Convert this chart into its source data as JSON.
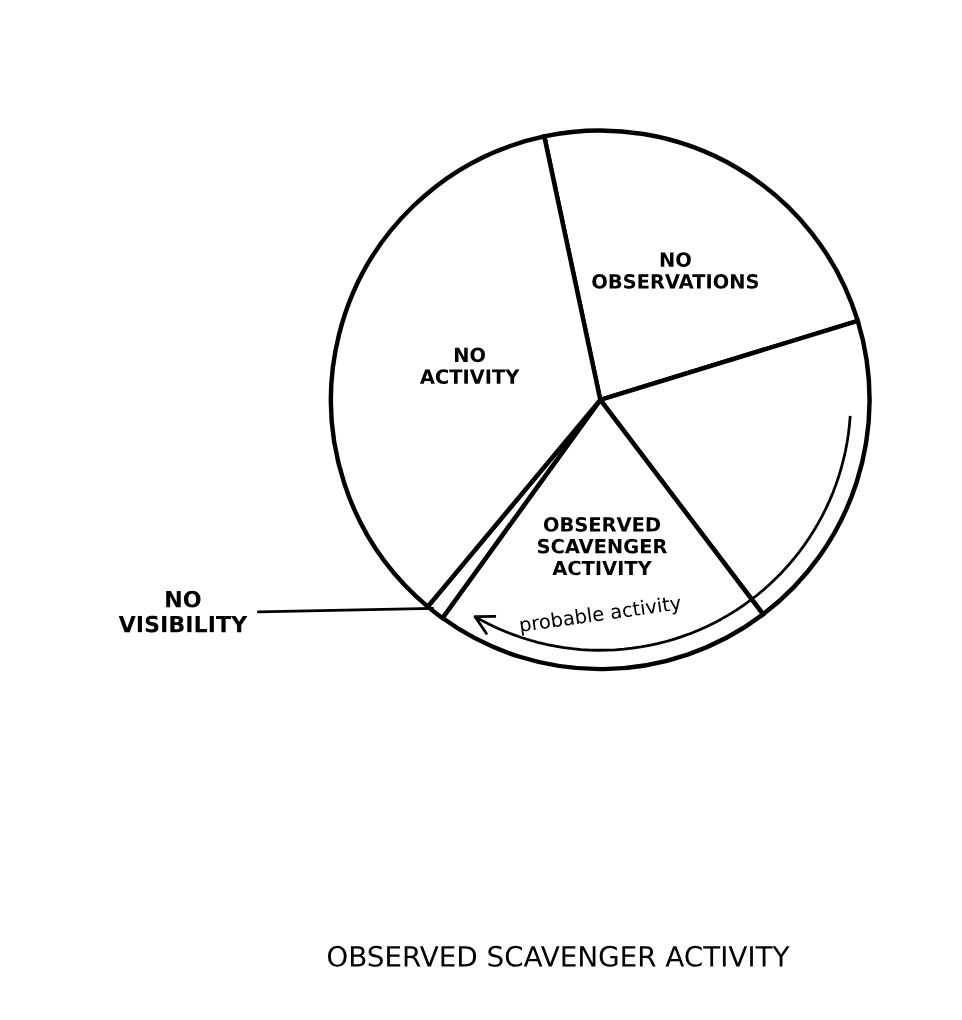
{
  "chart_data": {
    "type": "pie",
    "title": "OBSERVED SCAVENGER ACTIVITY",
    "categories": [
      "NO OBSERVATIONS",
      null,
      "OBSERVED SCAVENGER ACTIVITY",
      "NO VISIBILITY",
      "NO ACTIVITY"
    ],
    "values": [
      23.6,
      19.4,
      20.3,
      1.1,
      35.6
    ],
    "colors": [
      "#ffffff",
      "#ffffff",
      "#ffffff",
      "#ffffff",
      "#ffffff"
    ],
    "annotations": [
      "probable activity"
    ]
  }
}
